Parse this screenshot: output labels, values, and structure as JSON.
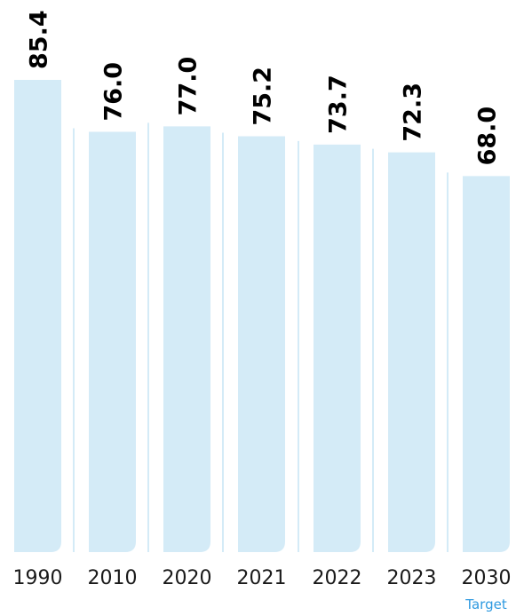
{
  "chart_data": {
    "type": "bar",
    "categories": [
      "1990",
      "2010",
      "2020",
      "2021",
      "2022",
      "2023",
      "2030"
    ],
    "values": [
      85.4,
      76.0,
      77.0,
      75.2,
      73.7,
      72.3,
      68.0
    ],
    "value_labels": [
      "85.4",
      "76.0",
      "77.0",
      "75.2",
      "73.7",
      "72.3",
      "68.0"
    ],
    "category_sublabels": [
      "",
      "",
      "",
      "",
      "",
      "",
      "Target"
    ],
    "title": "",
    "xlabel": "",
    "ylabel": "",
    "grid": false,
    "colors": {
      "bar": "#d4ebf7",
      "separator": "#d4ebf7",
      "value_text": "#000000",
      "category_text": "#1a1a1a",
      "sublabel_text": "#2f9ae0"
    }
  }
}
